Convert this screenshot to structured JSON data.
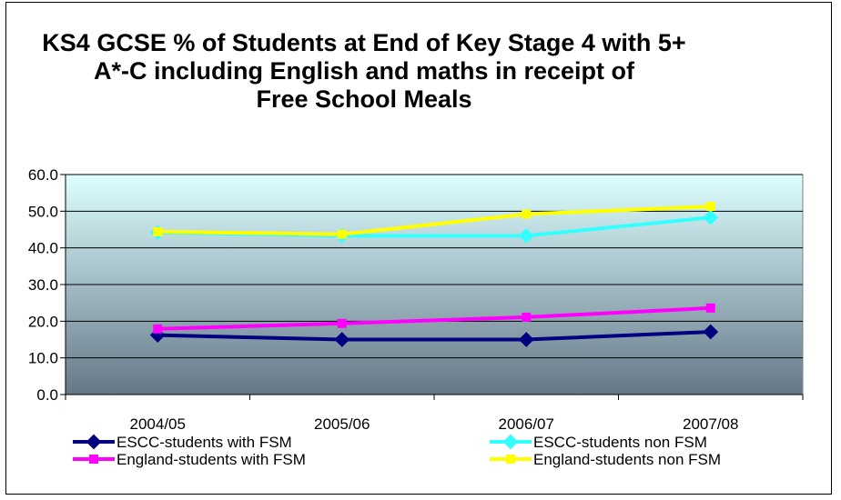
{
  "chart_data": {
    "type": "line",
    "title_lines": [
      "KS4 GCSE % of Students at End of Key Stage 4 with 5+",
      "A*-C including English and maths in receipt of",
      "Free School Meals"
    ],
    "xlabel": "",
    "ylabel": "",
    "categories": [
      "2004/05",
      "2005/06",
      "2006/07",
      "2007/08"
    ],
    "ylim": [
      0,
      60
    ],
    "yticks": [
      "0.0",
      "10.0",
      "20.0",
      "30.0",
      "40.0",
      "50.0",
      "60.0"
    ],
    "grid": true,
    "legend_position": "bottom",
    "series": [
      {
        "name": "ESCC-students with FSM",
        "values": [
          16.2,
          15.0,
          15.0,
          17.1
        ],
        "color": "#000080",
        "marker": "diamond"
      },
      {
        "name": "ESCC-students non FSM",
        "values": [
          44.2,
          43.3,
          43.3,
          48.3
        ],
        "color": "#33FFFF",
        "marker": "diamond"
      },
      {
        "name": "England-students with FSM",
        "values": [
          17.9,
          19.4,
          21.1,
          23.6
        ],
        "color": "#FF00FF",
        "marker": "square"
      },
      {
        "name": "England-students non FSM",
        "values": [
          44.4,
          43.7,
          49.2,
          51.3
        ],
        "color": "#FFFF00",
        "marker": "square"
      }
    ],
    "plot_background_gradient": [
      "#DDFFFF",
      "#667788"
    ]
  }
}
